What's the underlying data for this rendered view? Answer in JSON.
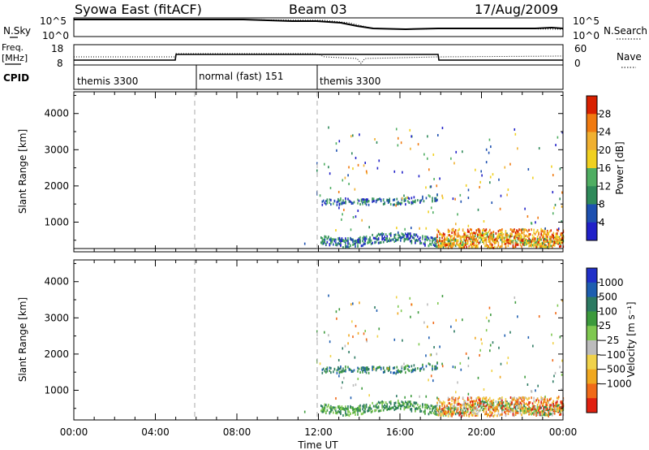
{
  "header": {
    "station": "Syowa East (fitACF)",
    "beam": "Beam 03",
    "date": "17/Aug/2009"
  },
  "noise_panel": {
    "left_label": "N.Sky",
    "right_label": "N.Search",
    "left_ticks": [
      "10^5",
      "10^0"
    ],
    "right_ticks": [
      "10^5",
      "10^0"
    ]
  },
  "freq_panel": {
    "left_label_line1": "Freq.",
    "left_label_line2": "[MHz]",
    "right_label": "Nave",
    "left_ticks": [
      "18",
      "8"
    ],
    "right_ticks": [
      "60",
      "0"
    ]
  },
  "cpid": {
    "label": "CPID",
    "segments": [
      {
        "start": 0,
        "end": 6,
        "label": "themis 3300"
      },
      {
        "start": 6,
        "end": 12,
        "label": "normal (fast) 151"
      },
      {
        "start": 12,
        "end": 24,
        "label": "themis 3300"
      }
    ]
  },
  "colors": {
    "power_scale": [
      "#2020c8",
      "#1d50b0",
      "#2f8a5a",
      "#4fae62",
      "#f0d020",
      "#f0b030",
      "#f07a10",
      "#d82000"
    ],
    "velocity_scale": [
      "#e02010",
      "#f06a18",
      "#f0a820",
      "#f0d24a",
      "#bcbcbc",
      "#7fc850",
      "#3c9a3c",
      "#2c7a62",
      "#1e5eb0",
      "#2030c8"
    ]
  },
  "chart_data": [
    {
      "type": "heatmap",
      "panel": "power",
      "xlabel": "",
      "ylabel": "Slant Range [km]",
      "xlim": [
        0,
        24
      ],
      "ylim": [
        180,
        4600
      ],
      "x_ticks": [
        0,
        4,
        8,
        12,
        16,
        20,
        24
      ],
      "y_ticks": [
        1000,
        2000,
        3000,
        4000
      ],
      "y_tick_labels": [
        "1000",
        "2000",
        "3000",
        "4000"
      ],
      "colorbar": {
        "label": "Power [dB]",
        "tick_labels": [
          "28",
          "24",
          "20",
          "16",
          "12",
          "8",
          "4"
        ]
      },
      "regions": [
        {
          "t_start": 12.0,
          "t_end": 17.8,
          "r_start": 1420,
          "r_end": 1640,
          "level": "low"
        },
        {
          "t_start": 12.1,
          "t_end": 24.0,
          "r_start": 400,
          "r_end": 800,
          "level": "low-mid"
        },
        {
          "t_start": 17.8,
          "t_end": 24.0,
          "r_start": 250,
          "r_end": 700,
          "level": "high"
        },
        {
          "t_start": 12.0,
          "t_end": 24.0,
          "r_start": 700,
          "r_end": 3600,
          "level": "sparse"
        }
      ]
    },
    {
      "type": "heatmap",
      "panel": "velocity",
      "xlabel": "Time UT",
      "ylabel": "Slant Range [km]",
      "xlim": [
        0,
        24
      ],
      "ylim": [
        180,
        4600
      ],
      "x_ticks": [
        0,
        4,
        8,
        12,
        16,
        20,
        24
      ],
      "x_tick_labels": [
        "00:00",
        "04:00",
        "08:00",
        "12:00",
        "16:00",
        "20:00",
        "00:00"
      ],
      "y_ticks": [
        1000,
        2000,
        3000,
        4000
      ],
      "y_tick_labels": [
        "1000",
        "2000",
        "3000",
        "4000"
      ],
      "colorbar": {
        "label": "Velocity [m s⁻¹]",
        "tick_labels": [
          "1000",
          "500",
          "100",
          "25",
          "−25",
          "−100",
          "−500",
          "−1000"
        ]
      },
      "regions": [
        {
          "t_start": 12.0,
          "t_end": 17.8,
          "r_start": 1420,
          "r_end": 1640,
          "level": "positive"
        },
        {
          "t_start": 12.1,
          "t_end": 24.0,
          "r_start": 400,
          "r_end": 800,
          "level": "positive-low"
        },
        {
          "t_start": 17.8,
          "t_end": 24.0,
          "r_start": 250,
          "r_end": 700,
          "level": "negative"
        },
        {
          "t_start": 12.0,
          "t_end": 24.0,
          "r_start": 700,
          "r_end": 3600,
          "level": "sparse"
        }
      ]
    }
  ]
}
